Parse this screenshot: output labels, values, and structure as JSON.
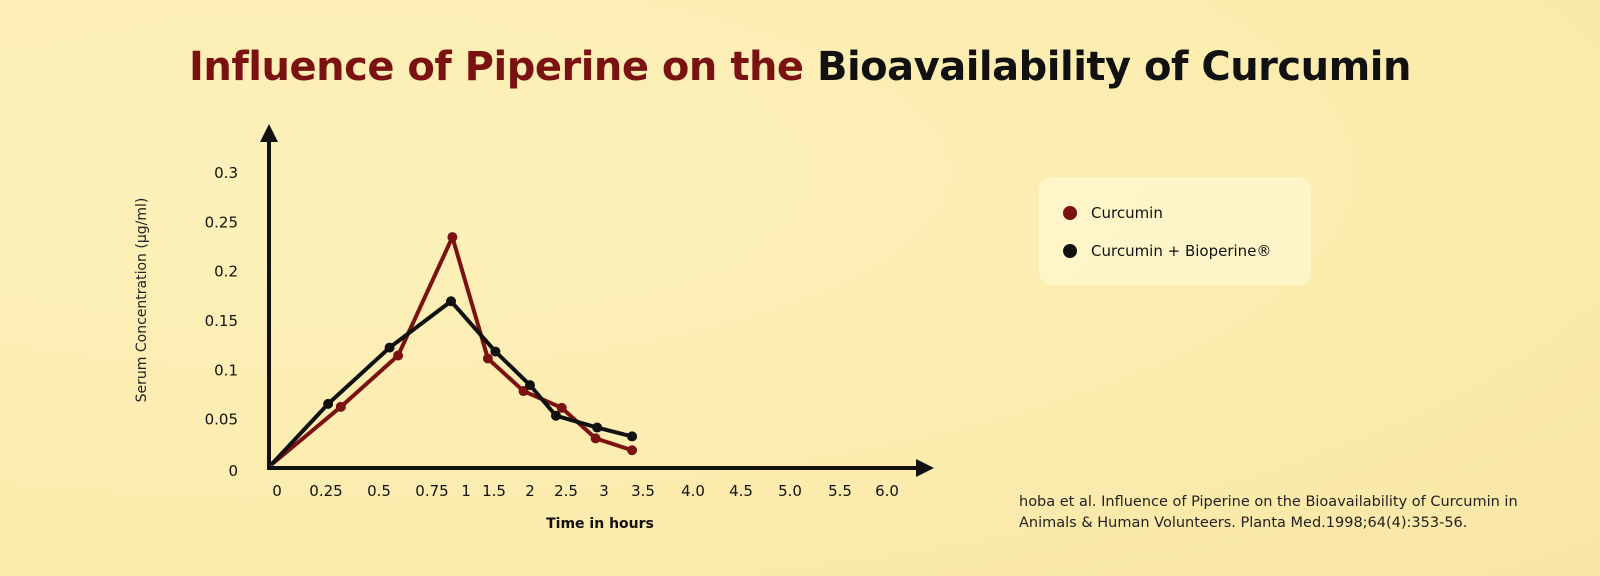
{
  "chart_data": {
    "type": "line",
    "title_part1": "Influence of Piperine on the",
    "title_part2": "Bioavailability of Curcumin",
    "xlabel": "Time in hours",
    "ylabel": "Serum Concentration (µg/ml)",
    "xticks": [
      "0",
      "0.25",
      "0.5",
      "0.75",
      "1",
      "1.5",
      "2",
      "2.5",
      "3",
      "3.5",
      "4.0",
      "4.5",
      "5.0",
      "5.5",
      "6.0"
    ],
    "xtick_values": [
      0,
      0.25,
      0.5,
      0.75,
      1,
      1.5,
      2,
      2.5,
      3,
      3.5,
      4,
      4.5,
      5,
      5.5,
      6
    ],
    "yticks": [
      "0",
      "0.05",
      "0.1",
      "0.15",
      "0.2",
      "0.25",
      "0.3"
    ],
    "ytick_values": [
      0,
      0.05,
      0.1,
      0.15,
      0.2,
      0.25,
      0.3
    ],
    "ylim": [
      0,
      0.3
    ],
    "grid": false,
    "legend_position": "right",
    "series": [
      {
        "name": "Curcumin",
        "color": "#7a1212",
        "x": [
          0,
          0.32,
          0.59,
          0.9,
          1.39,
          1.91,
          2.44,
          2.89,
          3.36
        ],
        "y": [
          0,
          0.062,
          0.114,
          0.234,
          0.111,
          0.078,
          0.061,
          0.03,
          0.018
        ]
      },
      {
        "name": "Curcumin + Bioperine®",
        "color": "#111111",
        "x": [
          0,
          0.26,
          0.55,
          0.89,
          1.52,
          2.0,
          2.36,
          2.91,
          3.36
        ],
        "y": [
          0,
          0.065,
          0.122,
          0.169,
          0.118,
          0.084,
          0.053,
          0.041,
          0.032
        ]
      }
    ]
  },
  "citation": {
    "line1": "hoba et al. Influence of Piperine on the Bioavailability of Curcumin in",
    "line2": "Animals & Human Volunteers. Planta Med.1998;64(4):353-56."
  }
}
